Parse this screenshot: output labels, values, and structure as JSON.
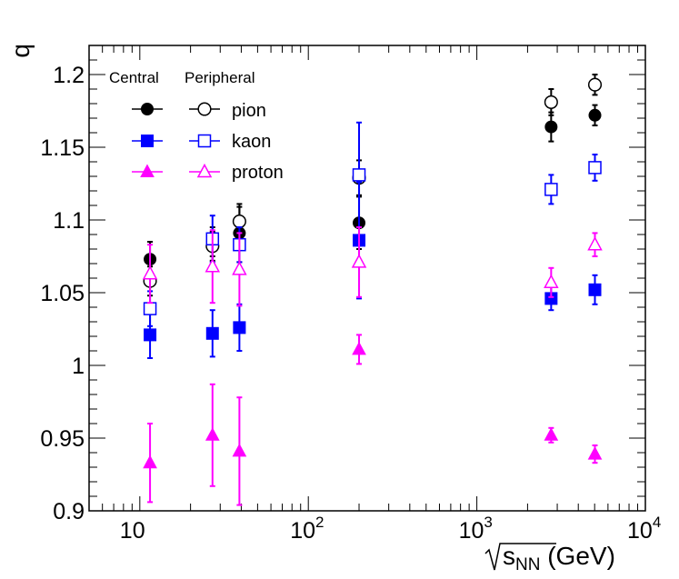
{
  "chart_data": {
    "type": "scatter",
    "title": "",
    "ylabel": "q",
    "xlabel": {
      "prefix": "s",
      "subscript": "NN",
      "suffix": " (GeV)"
    },
    "xscale": "log",
    "xlim": [
      5,
      10000
    ],
    "ylim": [
      0.9,
      1.22
    ],
    "x_ticks": [
      {
        "value": 10,
        "base": "10",
        "exponent": ""
      },
      {
        "value": 100,
        "base": "10",
        "exponent": "2"
      },
      {
        "value": 1000,
        "base": "10",
        "exponent": "3"
      },
      {
        "value": 10000,
        "base": "10",
        "exponent": "4"
      }
    ],
    "y_ticks": [
      {
        "value": 0.9,
        "label": "0.9"
      },
      {
        "value": 0.95,
        "label": "0.95"
      },
      {
        "value": 1.0,
        "label": "1"
      },
      {
        "value": 1.05,
        "label": "1.05"
      },
      {
        "value": 1.1,
        "label": "1.1"
      },
      {
        "value": 1.15,
        "label": "1.15"
      },
      {
        "value": 1.2,
        "label": "1.2"
      }
    ],
    "grid": false,
    "legend": {
      "placement": "top-left",
      "col_headers": [
        "Central",
        "Peripheral"
      ],
      "species_labels": [
        "pion",
        "kaon",
        "proton"
      ]
    },
    "series": [
      {
        "name": "pion central",
        "species": "pion",
        "centrality": "central",
        "color": "#000000",
        "marker": "circle",
        "filled": true,
        "x": [
          11.5,
          27,
          39,
          200,
          2760,
          5020
        ],
        "y": [
          1.073,
          1.085,
          1.091,
          1.098,
          1.164,
          1.172
        ],
        "err": [
          0.012,
          0.01,
          0.02,
          0.018,
          0.01,
          0.007
        ]
      },
      {
        "name": "pion peripheral",
        "species": "pion",
        "centrality": "peripheral",
        "color": "#000000",
        "marker": "circle",
        "filled": false,
        "x": [
          11.5,
          27,
          39,
          200,
          2760,
          5020
        ],
        "y": [
          1.058,
          1.082,
          1.099,
          1.129,
          1.181,
          1.193
        ],
        "err": [
          0.01,
          0.01,
          0.01,
          0.012,
          0.009,
          0.007
        ]
      },
      {
        "name": "kaon central",
        "species": "kaon",
        "centrality": "central",
        "color": "#0000ff",
        "marker": "square",
        "filled": true,
        "x": [
          11.5,
          27,
          39,
          200,
          2760,
          5020
        ],
        "y": [
          1.021,
          1.022,
          1.026,
          1.086,
          1.046,
          1.052
        ],
        "err": [
          0.016,
          0.016,
          0.016,
          0.04,
          0.008,
          0.01
        ]
      },
      {
        "name": "kaon peripheral",
        "species": "kaon",
        "centrality": "peripheral",
        "color": "#0000ff",
        "marker": "square",
        "filled": false,
        "x": [
          11.5,
          27,
          39,
          200,
          2760,
          5020
        ],
        "y": [
          1.039,
          1.087,
          1.083,
          1.131,
          1.121,
          1.136
        ],
        "err": [
          0.012,
          0.016,
          0.012,
          0.036,
          0.01,
          0.009
        ]
      },
      {
        "name": "proton central",
        "species": "proton",
        "centrality": "central",
        "color": "#ff00ff",
        "marker": "triangle",
        "filled": true,
        "x": [
          11.5,
          27,
          39,
          200,
          2760,
          5020
        ],
        "y": [
          0.933,
          0.952,
          0.941,
          1.011,
          0.952,
          0.939
        ],
        "err": [
          0.027,
          0.035,
          0.037,
          0.01,
          0.005,
          0.006
        ]
      },
      {
        "name": "proton peripheral",
        "species": "proton",
        "centrality": "peripheral",
        "color": "#ff00ff",
        "marker": "triangle",
        "filled": false,
        "x": [
          11.5,
          27,
          39,
          200,
          2760,
          5020
        ],
        "y": [
          1.063,
          1.068,
          1.066,
          1.071,
          1.057,
          1.083
        ],
        "err": [
          0.02,
          0.025,
          0.025,
          0.024,
          0.01,
          0.008
        ]
      }
    ]
  }
}
